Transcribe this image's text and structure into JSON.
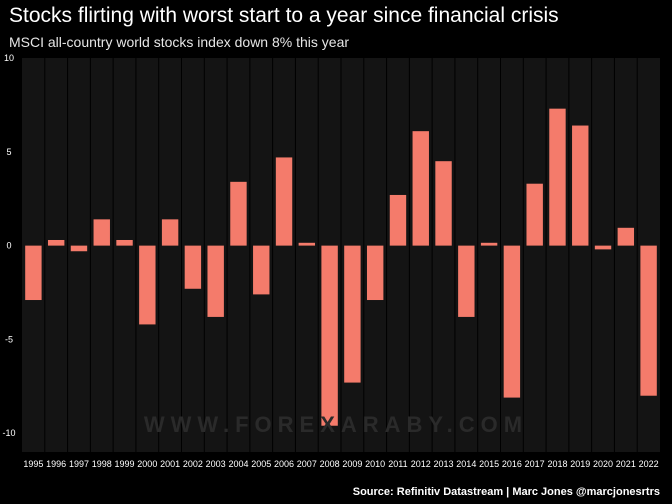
{
  "title": "Stocks flirting with worst start to a year since financial crisis",
  "subtitle": "MSCI all-country world stocks index down 8% this year",
  "source": "Source: Refinitiv Datastream | Marc Jones @marcjonesrtrs",
  "watermark": "WWW.FOREXARABY.COM",
  "colors": {
    "background": "#000000",
    "panel": "#141414",
    "bar": "#f47b6b",
    "grid": "#000000"
  },
  "chart_data": {
    "type": "bar",
    "title": "Stocks flirting with worst start to a year since financial crisis",
    "subtitle": "MSCI all-country world stocks index down 8% this year",
    "xlabel": "",
    "ylabel": "",
    "ylim": [
      -11,
      10
    ],
    "yticks": [
      10,
      5,
      0,
      -5,
      -10
    ],
    "grid": true,
    "categories": [
      "1995",
      "1996",
      "1997",
      "1998",
      "1999",
      "2000",
      "2001",
      "2002",
      "2003",
      "2004",
      "2005",
      "2006",
      "2007",
      "2008",
      "2009",
      "2010",
      "2011",
      "2012",
      "2013",
      "2014",
      "2015",
      "2016",
      "2017",
      "2018",
      "2019",
      "2020",
      "2021",
      "2022"
    ],
    "values": [
      -2.9,
      0.3,
      -0.3,
      1.4,
      0.3,
      -4.2,
      1.4,
      -2.3,
      -3.8,
      3.4,
      -2.6,
      4.7,
      0.15,
      -9.6,
      -7.3,
      -2.9,
      2.7,
      6.1,
      4.5,
      -3.8,
      0.15,
      -8.1,
      3.3,
      7.3,
      6.4,
      -0.2,
      0.95,
      -8.0
    ]
  }
}
